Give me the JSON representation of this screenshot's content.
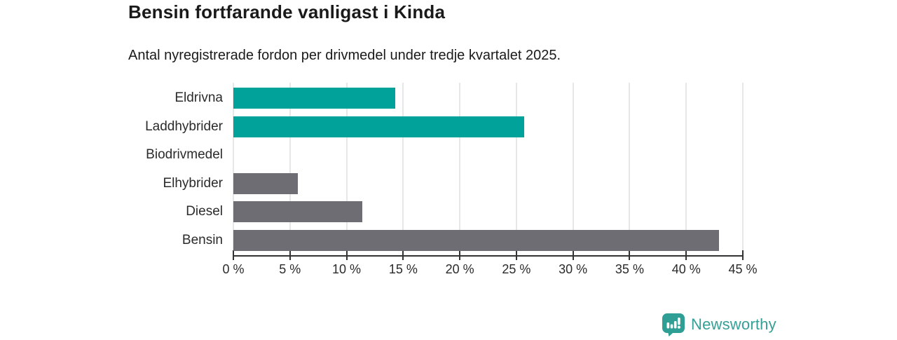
{
  "header": {
    "title": "Bensin fortfarande vanligast i Kinda",
    "subtitle": "Antal nyregistrerade fordon per drivmedel under tredje kvartalet 2025."
  },
  "chart_data": {
    "type": "bar",
    "orientation": "horizontal",
    "title": "Bensin fortfarande vanligast i Kinda",
    "subtitle": "Antal nyregistrerade fordon per drivmedel under tredje kvartalet 2025.",
    "categories": [
      "Eldrivna",
      "Laddhybrider",
      "Biodrivmedel",
      "Elhybrider",
      "Diesel",
      "Bensin"
    ],
    "values": [
      14.3,
      25.7,
      0,
      5.7,
      11.4,
      42.9
    ],
    "unit": "%",
    "bar_colors": [
      "#00a299",
      "#00a299",
      "#6e6d73",
      "#6e6d73",
      "#6e6d73",
      "#6e6d73"
    ],
    "xlim": [
      0,
      45
    ],
    "x_tick_step": 5,
    "x_tick_labels": [
      "0 %",
      "5 %",
      "10 %",
      "15 %",
      "20 %",
      "25 %",
      "30 %",
      "35 %",
      "40 %",
      "45 %"
    ],
    "grid": "vertical",
    "legend": "none"
  },
  "branding": {
    "logo_text": "Newsworthy",
    "logo_icon": "newsworthy-bar-chart-bubble-icon",
    "logo_color": "#35a095",
    "icon_color": "#2f9e94"
  },
  "colors": {
    "highlight_teal": "#00a299",
    "neutral_gray": "#6e6d73",
    "axis": "#333333",
    "gridline": "#e7e7e7",
    "text": "#1a1a1a"
  }
}
